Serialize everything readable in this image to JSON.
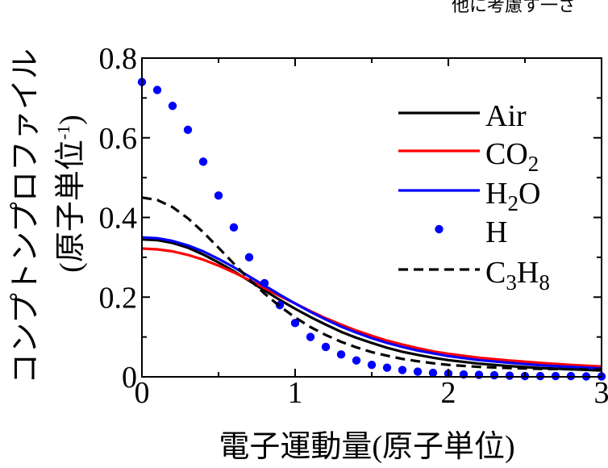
{
  "header_fragment": "他に考慮す一さ",
  "chart_data": {
    "type": "line",
    "xlabel": "電子運動量(原子単位)",
    "ylabel_main": "コンプトンプロファイル",
    "ylabel_sub_open": "(原子単位",
    "ylabel_sub_sup": "-1",
    "ylabel_sub_close": ")",
    "xlim": [
      0,
      3
    ],
    "ylim": [
      0,
      0.8
    ],
    "xticks": [
      0,
      1,
      2,
      3
    ],
    "xtick_labels": [
      "0",
      "1",
      "2",
      "3"
    ],
    "yticks": [
      0,
      0.2,
      0.4,
      0.6,
      0.8
    ],
    "ytick_labels": [
      "0",
      "0.2",
      "0.4",
      "0.6",
      "0.8"
    ],
    "grid": false,
    "legend_position": "top-right",
    "series": [
      {
        "name": "Air",
        "legend": {
          "base": "Air",
          "sub": "",
          "rest": ""
        },
        "color": "#000000",
        "style": "solid",
        "x": [
          0,
          0.1,
          0.2,
          0.3,
          0.4,
          0.5,
          0.6,
          0.7,
          0.8,
          0.9,
          1.0,
          1.1,
          1.2,
          1.3,
          1.4,
          1.5,
          1.6,
          1.7,
          1.8,
          1.9,
          2.0,
          2.2,
          2.4,
          2.6,
          2.8,
          3.0
        ],
        "y": [
          0.345,
          0.343,
          0.336,
          0.324,
          0.307,
          0.287,
          0.265,
          0.241,
          0.217,
          0.193,
          0.171,
          0.15,
          0.131,
          0.113,
          0.098,
          0.085,
          0.073,
          0.063,
          0.055,
          0.048,
          0.042,
          0.033,
          0.027,
          0.022,
          0.019,
          0.016
        ]
      },
      {
        "name": "CO2",
        "legend": {
          "base": "CO",
          "sub": "2",
          "rest": ""
        },
        "color": "#ff0000",
        "style": "solid",
        "x": [
          0,
          0.1,
          0.2,
          0.3,
          0.4,
          0.5,
          0.6,
          0.7,
          0.8,
          0.9,
          1.0,
          1.1,
          1.2,
          1.3,
          1.4,
          1.5,
          1.6,
          1.7,
          1.8,
          1.9,
          2.0,
          2.2,
          2.4,
          2.6,
          2.8,
          3.0
        ],
        "y": [
          0.322,
          0.32,
          0.315,
          0.306,
          0.294,
          0.279,
          0.262,
          0.243,
          0.223,
          0.203,
          0.184,
          0.165,
          0.147,
          0.131,
          0.116,
          0.103,
          0.091,
          0.081,
          0.072,
          0.064,
          0.058,
          0.048,
          0.041,
          0.035,
          0.03,
          0.026
        ]
      },
      {
        "name": "H2O",
        "legend": {
          "base": "H",
          "sub": "2",
          "rest": "O"
        },
        "color": "#0000ff",
        "style": "solid",
        "x": [
          0,
          0.1,
          0.2,
          0.3,
          0.4,
          0.5,
          0.6,
          0.7,
          0.8,
          0.9,
          1.0,
          1.1,
          1.2,
          1.3,
          1.4,
          1.5,
          1.6,
          1.7,
          1.8,
          1.9,
          2.0,
          2.2,
          2.4,
          2.6,
          2.8,
          3.0
        ],
        "y": [
          0.35,
          0.348,
          0.341,
          0.33,
          0.315,
          0.296,
          0.275,
          0.252,
          0.229,
          0.206,
          0.184,
          0.163,
          0.144,
          0.126,
          0.111,
          0.097,
          0.085,
          0.075,
          0.066,
          0.059,
          0.052,
          0.042,
          0.035,
          0.029,
          0.025,
          0.021
        ]
      },
      {
        "name": "H",
        "legend": {
          "base": "H",
          "sub": "",
          "rest": ""
        },
        "color": "#0000ff",
        "style": "dots",
        "x": [
          0,
          0.1,
          0.2,
          0.3,
          0.4,
          0.5,
          0.6,
          0.7,
          0.8,
          0.9,
          1.0,
          1.1,
          1.2,
          1.3,
          1.4,
          1.5,
          1.6,
          1.7,
          1.8,
          1.9,
          2.0,
          2.1,
          2.2,
          2.3,
          2.4,
          2.5,
          2.6,
          2.7,
          2.8,
          2.9,
          3.0
        ],
        "y": [
          0.74,
          0.72,
          0.68,
          0.62,
          0.54,
          0.455,
          0.375,
          0.3,
          0.235,
          0.18,
          0.135,
          0.1,
          0.075,
          0.056,
          0.041,
          0.03,
          0.023,
          0.017,
          0.013,
          0.01,
          0.008,
          0.006,
          0.005,
          0.004,
          0.003,
          0.002,
          0.002,
          0.002,
          0.002,
          0.001,
          0.001
        ]
      },
      {
        "name": "C3H8",
        "legend": {
          "base": "C",
          "sub": "3",
          "rest": "H",
          "sub2": "8"
        },
        "color": "#000000",
        "style": "dashed",
        "x": [
          0,
          0.1,
          0.2,
          0.3,
          0.4,
          0.5,
          0.6,
          0.7,
          0.8,
          0.9,
          1.0,
          1.1,
          1.2,
          1.3,
          1.4,
          1.5,
          1.6,
          1.7,
          1.8,
          1.9,
          2.0,
          2.2,
          2.4,
          2.6,
          2.8,
          3.0
        ],
        "y": [
          0.45,
          0.444,
          0.426,
          0.398,
          0.363,
          0.324,
          0.284,
          0.245,
          0.209,
          0.177,
          0.149,
          0.125,
          0.105,
          0.088,
          0.074,
          0.062,
          0.053,
          0.045,
          0.039,
          0.034,
          0.03,
          0.025,
          0.022,
          0.02,
          0.019,
          0.018
        ]
      }
    ]
  }
}
